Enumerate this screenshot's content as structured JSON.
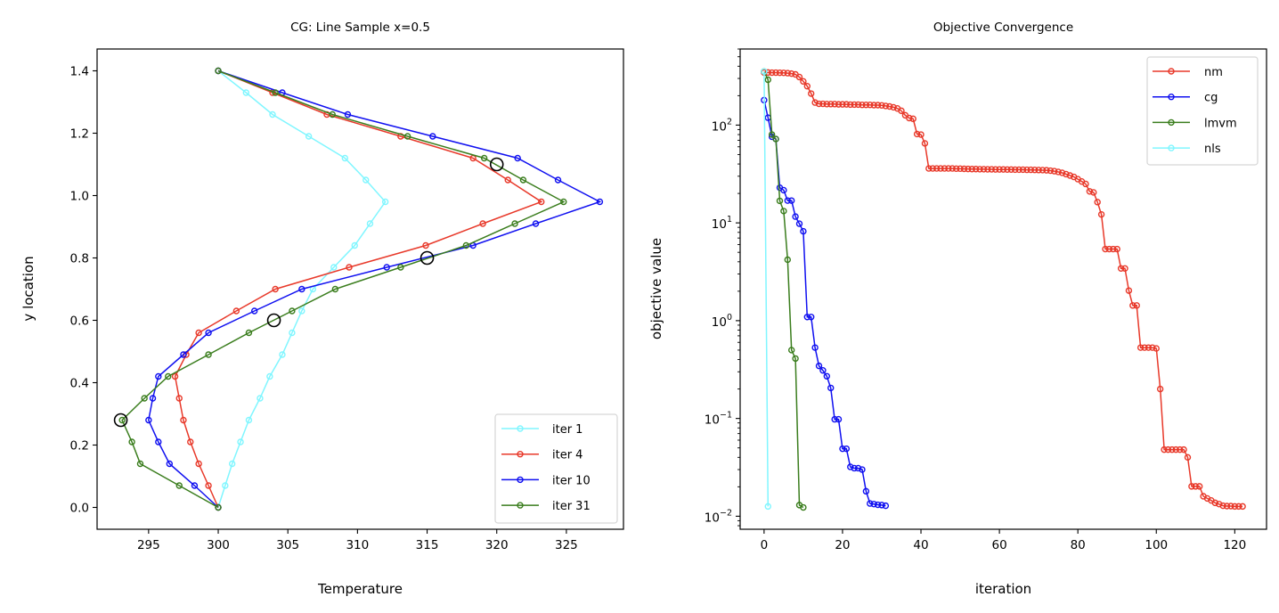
{
  "chart_data": [
    {
      "type": "line",
      "title": "CG: Line Sample x=0.5",
      "xlabel": "Temperature",
      "ylabel": "y location",
      "xlim": [
        291.3,
        329.1
      ],
      "ylim": [
        -0.07,
        1.47
      ],
      "xticks": [
        295,
        300,
        305,
        310,
        315,
        320,
        325
      ],
      "xtick_labels": [
        "295",
        "300",
        "305",
        "310",
        "315",
        "320",
        "325"
      ],
      "yticks": [
        0.0,
        0.2,
        0.4,
        0.6,
        0.8,
        1.0,
        1.2,
        1.4
      ],
      "ytick_labels": [
        "0.0",
        "0.2",
        "0.4",
        "0.6",
        "0.8",
        "1.0",
        "1.2",
        "1.4"
      ],
      "grid": false,
      "legend_position": "lower-right",
      "y": [
        0,
        0.07,
        0.14,
        0.21,
        0.28,
        0.35,
        0.42,
        0.49,
        0.56,
        0.63,
        0.7,
        0.77,
        0.84,
        0.91,
        0.98,
        1.05,
        1.12,
        1.19,
        1.26,
        1.33,
        1.4
      ],
      "series": [
        {
          "name": "iter 1",
          "color": "#80f6ff",
          "x": [
            300.0,
            300.5,
            301.0,
            301.6,
            302.2,
            303.0,
            303.7,
            304.6,
            305.3,
            306.0,
            306.8,
            308.3,
            309.8,
            310.9,
            312.0,
            310.6,
            309.1,
            306.5,
            303.9,
            302.0,
            300.0
          ]
        },
        {
          "name": "iter 4",
          "color": "#e8392a",
          "x": [
            300.0,
            299.3,
            298.6,
            298.0,
            297.5,
            297.2,
            296.9,
            297.7,
            298.6,
            301.3,
            304.1,
            309.4,
            314.9,
            319.0,
            323.2,
            320.8,
            318.3,
            313.1,
            307.8,
            303.9,
            300.0
          ]
        },
        {
          "name": "iter 10",
          "color": "#1010f0",
          "x": [
            300.0,
            298.3,
            296.5,
            295.7,
            295.0,
            295.3,
            295.7,
            297.5,
            299.3,
            302.6,
            306.0,
            312.1,
            318.3,
            322.8,
            327.4,
            324.4,
            321.5,
            315.4,
            309.3,
            304.6,
            300.0
          ]
        },
        {
          "name": "iter 31",
          "color": "#3a7d1d",
          "x": [
            300.0,
            297.2,
            294.4,
            293.8,
            293.1,
            294.7,
            296.4,
            299.3,
            302.2,
            305.3,
            308.4,
            313.1,
            317.8,
            321.3,
            324.8,
            321.9,
            319.1,
            313.6,
            308.2,
            304.1,
            300.0
          ]
        }
      ],
      "observations": {
        "color": "#000000",
        "x": [
          293.0,
          304.0,
          315.0,
          320.0
        ],
        "y": [
          0.28,
          0.6,
          0.8,
          1.1
        ]
      }
    },
    {
      "type": "line",
      "title": "Objective Convergence",
      "xlabel": "iteration",
      "ylabel": "objective value",
      "yscale": "log",
      "xlim": [
        -6.1,
        128.1
      ],
      "ylim": [
        0.00736,
        600
      ],
      "xticks": [
        0,
        20,
        40,
        60,
        80,
        100,
        120
      ],
      "xtick_labels": [
        "0",
        "20",
        "40",
        "60",
        "80",
        "100",
        "120"
      ],
      "yticks": [
        0.01,
        0.1,
        1,
        10,
        100
      ],
      "ytick_labels": [
        {
          "base": "10",
          "exp": "−2"
        },
        {
          "base": "10",
          "exp": "−1"
        },
        {
          "base": "10",
          "exp": "0"
        },
        {
          "base": "10",
          "exp": "1"
        },
        {
          "base": "10",
          "exp": "2"
        }
      ],
      "grid": false,
      "legend_position": "top-right",
      "series": [
        {
          "name": "nm",
          "color": "#e8392a",
          "values": [
            345,
            345,
            344,
            344,
            343,
            342,
            340,
            336,
            330,
            310,
            280,
            250,
            210,
            170,
            165,
            165,
            164,
            164,
            164,
            163,
            163,
            163,
            162,
            162,
            162,
            161,
            161,
            161,
            160,
            160,
            159,
            157,
            155,
            152,
            148,
            140,
            126,
            118,
            116,
            81,
            80,
            65,
            36,
            36,
            36,
            36,
            36,
            36,
            36,
            35.8,
            35.8,
            35.7,
            35.6,
            35.5,
            35.5,
            35.4,
            35.4,
            35.3,
            35.3,
            35.2,
            35.2,
            35.2,
            35.1,
            35.1,
            35.0,
            35.0,
            35.0,
            34.9,
            34.9,
            34.8,
            34.7,
            34.6,
            34.5,
            34.2,
            33.8,
            33.2,
            32.5,
            31.5,
            30.5,
            29.5,
            28,
            26.5,
            25,
            21,
            20.5,
            16.3,
            12.2,
            5.4,
            5.4,
            5.4,
            5.4,
            3.42,
            3.42,
            2.03,
            1.43,
            1.43,
            0.53,
            0.53,
            0.53,
            0.53,
            0.52,
            0.2,
            0.048,
            0.048,
            0.048,
            0.048,
            0.048,
            0.048,
            0.04,
            0.0202,
            0.0202,
            0.0202,
            0.016,
            0.0152,
            0.0145,
            0.0137,
            0.0133,
            0.0128,
            0.0127,
            0.0127,
            0.0126,
            0.0126,
            0.0126
          ]
        },
        {
          "name": "cg",
          "color": "#1010f0",
          "values": [
            180,
            119,
            76,
            72,
            22.9,
            21.6,
            16.9,
            16.9,
            11.6,
            9.8,
            8.2,
            1.09,
            1.09,
            0.53,
            0.345,
            0.31,
            0.27,
            0.205,
            0.098,
            0.098,
            0.049,
            0.049,
            0.032,
            0.031,
            0.031,
            0.03,
            0.018,
            0.0135,
            0.0133,
            0.0131,
            0.013,
            0.0128
          ]
        },
        {
          "name": "lmvm",
          "color": "#3a7d1d",
          "values": [
            353,
            291,
            80,
            72,
            16.8,
            13.2,
            4.2,
            0.5,
            0.41,
            0.013,
            0.0123
          ]
        },
        {
          "name": "nls",
          "color": "#80f6ff",
          "values": [
            353,
            0.0126
          ]
        }
      ]
    }
  ]
}
